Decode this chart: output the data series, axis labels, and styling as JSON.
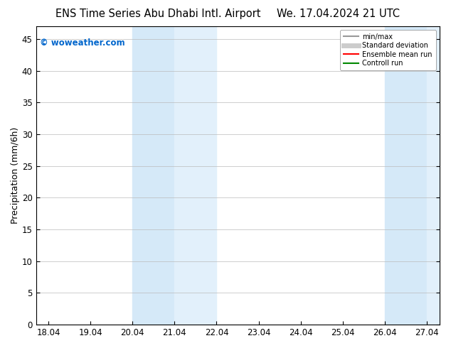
{
  "title_left": "ENS Time Series Abu Dhabi Intl. Airport",
  "title_right": "We. 17.04.2024 21 UTC",
  "ylabel": "Precipitation (mm/6h)",
  "xlabel_ticks": [
    "18.04",
    "19.04",
    "20.04",
    "21.04",
    "22.04",
    "23.04",
    "24.04",
    "25.04",
    "26.04",
    "27.04"
  ],
  "ylim": [
    0,
    47
  ],
  "yticks": [
    0,
    5,
    10,
    15,
    20,
    25,
    30,
    35,
    40,
    45
  ],
  "shaded_regions": [
    {
      "xmin": 2.0,
      "xmax": 3.0,
      "color": "#daeaf7"
    },
    {
      "xmin": 3.0,
      "xmax": 4.0,
      "color": "#e8f4fd"
    },
    {
      "xmin": 8.0,
      "xmax": 9.0,
      "color": "#daeaf7"
    },
    {
      "xmin": 9.0,
      "xmax": 10.0,
      "color": "#e8f4fd"
    }
  ],
  "watermark_text": "© woweather.com",
  "watermark_color": "#0066cc",
  "legend_items": [
    {
      "label": "min/max",
      "color": "#999999",
      "lw": 1.5
    },
    {
      "label": "Standard deviation",
      "color": "#cccccc",
      "lw": 5
    },
    {
      "label": "Ensemble mean run",
      "color": "#ff0000",
      "lw": 1.5
    },
    {
      "label": "Controll run",
      "color": "#008800",
      "lw": 1.5
    }
  ],
  "bg_color": "#ffffff",
  "tick_font_size": 8.5,
  "label_font_size": 9,
  "title_font_size": 10.5
}
